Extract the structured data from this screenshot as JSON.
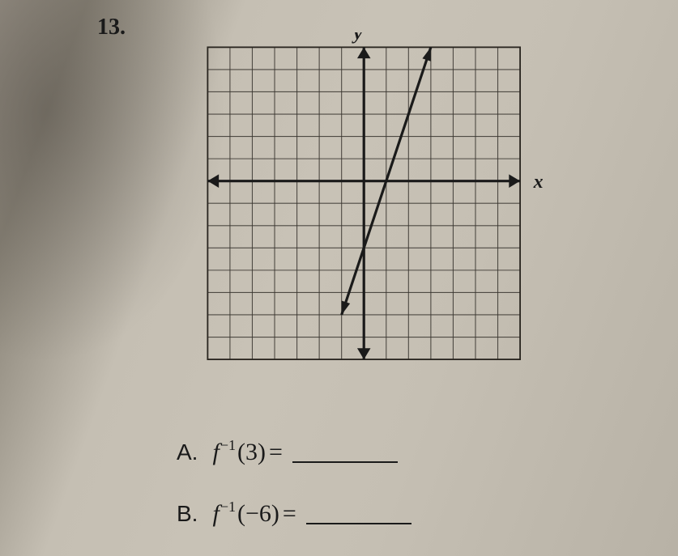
{
  "problem": {
    "number": "13."
  },
  "graph": {
    "grid_size": 14,
    "cell_size": 30,
    "origin_col": 7,
    "origin_row": 6,
    "x_label": "x",
    "y_label": "y",
    "grid_color": "#3a3630",
    "border_color": "#2a2620",
    "axis_color": "#1a1a1a",
    "line_color": "#1a1a1a",
    "background": "transparent",
    "function_line": {
      "x1_grid": -1,
      "y1_grid": -6,
      "x2_grid": 3,
      "y2_grid": 6,
      "slope": 3,
      "intercept": -3
    },
    "arrow_size": 12
  },
  "questions": {
    "a": {
      "label": "A.",
      "func": "f",
      "exponent": "−1",
      "arg": "(3)",
      "equals": "="
    },
    "b": {
      "label": "B.",
      "func": "f",
      "exponent": "−1",
      "arg": "(−6)",
      "equals": "="
    }
  },
  "styling": {
    "page_bg": "#c5bfb3",
    "text_color": "#1a1a1a",
    "number_fontsize": 28,
    "question_fontsize": 30,
    "axis_label_fontsize": 26,
    "line_width_axis": 3.5,
    "line_width_func": 3.5,
    "line_width_grid": 1.2,
    "blank_width": 130
  }
}
